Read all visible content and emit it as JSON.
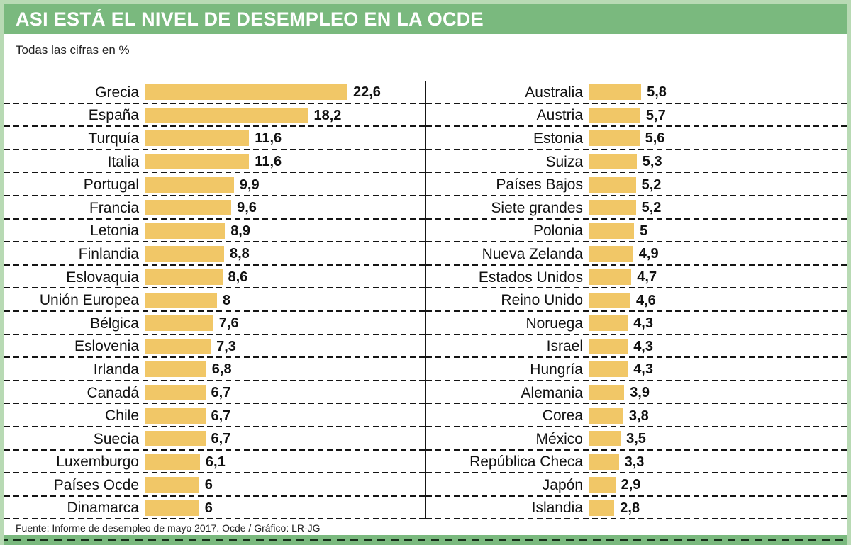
{
  "title": "ASI ESTÁ EL NIVEL DE DESEMPLEO EN LA OCDE",
  "subtitle": "Todas las cifras en %",
  "footer": "Fuente: Informe de desempleo de mayo 2017. Ocde / Gráfico: LR-JG",
  "colors": {
    "bar": "#f1c767",
    "header_bg": "#7ab97e",
    "frame": "#b8dab4",
    "text": "#1a1a1a"
  },
  "chart_data": {
    "type": "bar",
    "orientation": "horizontal",
    "title": "ASI ESTÁ EL NIVEL DE DESEMPLEO EN LA OCDE",
    "subtitle": "Todas las cifras en %",
    "source": "Fuente: Informe de desempleo de mayo 2017. Ocde / Gráfico: LR-JG",
    "unit": "%",
    "xlim": [
      0,
      22.6
    ],
    "grid": "dashed-row-separators",
    "columns": [
      {
        "name": "left",
        "rows": [
          {
            "label": "Grecia",
            "value": 22.6,
            "display": "22,6"
          },
          {
            "label": "España",
            "value": 18.2,
            "display": "18,2"
          },
          {
            "label": "Turquía",
            "value": 11.6,
            "display": "11,6"
          },
          {
            "label": "Italia",
            "value": 11.6,
            "display": "11,6"
          },
          {
            "label": "Portugal",
            "value": 9.9,
            "display": "9,9"
          },
          {
            "label": "Francia",
            "value": 9.6,
            "display": "9,6"
          },
          {
            "label": "Letonia",
            "value": 8.9,
            "display": "8,9"
          },
          {
            "label": "Finlandia",
            "value": 8.8,
            "display": "8,8"
          },
          {
            "label": "Eslovaquia",
            "value": 8.6,
            "display": "8,6"
          },
          {
            "label": "Unión Europea",
            "value": 8,
            "display": "8"
          },
          {
            "label": "Bélgica",
            "value": 7.6,
            "display": "7,6"
          },
          {
            "label": "Eslovenia",
            "value": 7.3,
            "display": "7,3"
          },
          {
            "label": "Irlanda",
            "value": 6.8,
            "display": "6,8"
          },
          {
            "label": "Canadá",
            "value": 6.7,
            "display": "6,7"
          },
          {
            "label": "Chile",
            "value": 6.7,
            "display": "6,7"
          },
          {
            "label": "Suecia",
            "value": 6.7,
            "display": "6,7"
          },
          {
            "label": "Luxemburgo",
            "value": 6.1,
            "display": "6,1"
          },
          {
            "label": "Países Ocde",
            "value": 6,
            "display": "6"
          },
          {
            "label": "Dinamarca",
            "value": 6,
            "display": "6"
          }
        ]
      },
      {
        "name": "right",
        "rows": [
          {
            "label": "Australia",
            "value": 5.8,
            "display": "5,8"
          },
          {
            "label": "Austria",
            "value": 5.7,
            "display": "5,7"
          },
          {
            "label": "Estonia",
            "value": 5.6,
            "display": "5,6"
          },
          {
            "label": "Suiza",
            "value": 5.3,
            "display": "5,3"
          },
          {
            "label": "Países Bajos",
            "value": 5.2,
            "display": "5,2"
          },
          {
            "label": "Siete grandes",
            "value": 5.2,
            "display": "5,2"
          },
          {
            "label": "Polonia",
            "value": 5,
            "display": "5"
          },
          {
            "label": "Nueva Zelanda",
            "value": 4.9,
            "display": "4,9"
          },
          {
            "label": "Estados Unidos",
            "value": 4.7,
            "display": "4,7"
          },
          {
            "label": "Reino Unido",
            "value": 4.6,
            "display": "4,6"
          },
          {
            "label": "Noruega",
            "value": 4.3,
            "display": "4,3"
          },
          {
            "label": "Israel",
            "value": 4.3,
            "display": "4,3"
          },
          {
            "label": "Hungría",
            "value": 4.3,
            "display": "4,3"
          },
          {
            "label": "Alemania",
            "value": 3.9,
            "display": "3,9"
          },
          {
            "label": "Corea",
            "value": 3.8,
            "display": "3,8"
          },
          {
            "label": "México",
            "value": 3.5,
            "display": "3,5"
          },
          {
            "label": "República Checa",
            "value": 3.3,
            "display": "3,3"
          },
          {
            "label": "Japón",
            "value": 2.9,
            "display": "2,9"
          },
          {
            "label": "Islandia",
            "value": 2.8,
            "display": "2,8"
          }
        ]
      }
    ]
  }
}
